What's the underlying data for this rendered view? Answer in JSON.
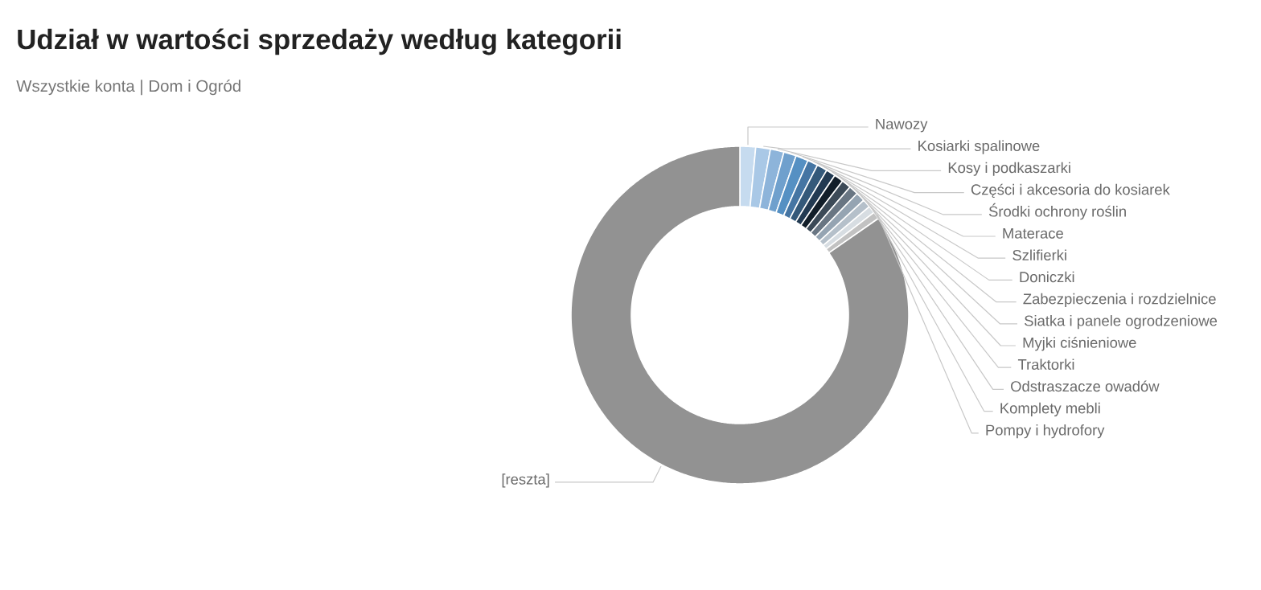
{
  "chart_data": {
    "type": "donut",
    "title": "Udział w wartości sprzedaży według kategorii",
    "subtitle": "Wszystkie konta | Dom i Ogród",
    "categories": [
      "Nawozy",
      "Kosiarki spalinowe",
      "Kosy i podkaszarki",
      "Części i akcesoria do kosiarek",
      "Środki ochrony roślin",
      "Materace",
      "Szlifierki",
      "Doniczki",
      "Zabezpieczenia i rozdzielnice",
      "Siatka i panele ogrodzeniowe",
      "Myjki ciśnieniowe",
      "Traktorki",
      "Odstraszacze owadów",
      "Komplety mebli",
      "Pompy i hydrofory",
      "[reszta]"
    ],
    "values": [
      1.5,
      1.4,
      1.3,
      1.2,
      1.2,
      1.0,
      1.0,
      0.9,
      0.9,
      0.9,
      0.9,
      0.9,
      0.8,
      0.7,
      0.7,
      84.7
    ],
    "colors": [
      "#c6dbef",
      "#a9c8e6",
      "#8db4da",
      "#6fa0cd",
      "#5590c3",
      "#4575a3",
      "#34597a",
      "#223a52",
      "#121e29",
      "#3c4a57",
      "#697683",
      "#95a4b2",
      "#b5c0ca",
      "#d7dde2",
      "#c2c2c2",
      "#929292"
    ]
  }
}
